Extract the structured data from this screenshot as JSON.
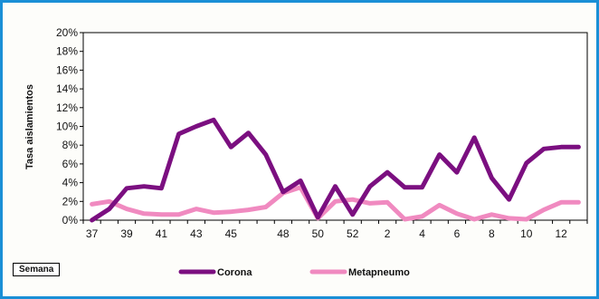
{
  "chart_data": {
    "type": "line",
    "title": "",
    "xlabel": "Semana",
    "ylabel": "Tasa aislamientos",
    "ylim": [
      0,
      20
    ],
    "yticks": [
      "0%",
      "2%",
      "4%",
      "6%",
      "8%",
      "10%",
      "12%",
      "14%",
      "16%",
      "18%",
      "20%"
    ],
    "x": [
      37,
      38,
      39,
      40,
      41,
      42,
      43,
      44,
      45,
      46,
      47,
      48,
      49,
      50,
      51,
      52,
      1,
      2,
      3,
      4,
      5,
      6,
      7,
      8,
      9,
      10,
      11,
      12,
      13
    ],
    "xtick_labels": [
      "37",
      "39",
      "41",
      "43",
      "45",
      "48",
      "50",
      "52",
      "2",
      "4",
      "6",
      "8",
      "10",
      "12"
    ],
    "grid": false,
    "legend_position": "bottom",
    "series": [
      {
        "name": "Corona",
        "color": "#7b0f80",
        "values": [
          0,
          1.2,
          3.4,
          3.6,
          3.4,
          9.2,
          10.0,
          10.7,
          7.8,
          9.3,
          7.0,
          3.0,
          4.2,
          0.3,
          3.6,
          0.6,
          3.6,
          5.1,
          3.5,
          3.5,
          7.0,
          5.1,
          8.8,
          4.5,
          2.2,
          6.1,
          7.6,
          7.8,
          7.8
        ]
      },
      {
        "name": "Metapneumo",
        "color": "#f08ac0",
        "values": [
          1.7,
          2.0,
          1.2,
          0.7,
          0.6,
          0.6,
          1.2,
          0.8,
          0.9,
          1.1,
          1.4,
          2.9,
          3.5,
          0.2,
          2.0,
          2.2,
          1.8,
          1.9,
          0.1,
          0.4,
          1.6,
          0.7,
          0.1,
          0.6,
          0.2,
          0.1,
          1.1,
          1.9,
          1.9
        ]
      }
    ]
  }
}
